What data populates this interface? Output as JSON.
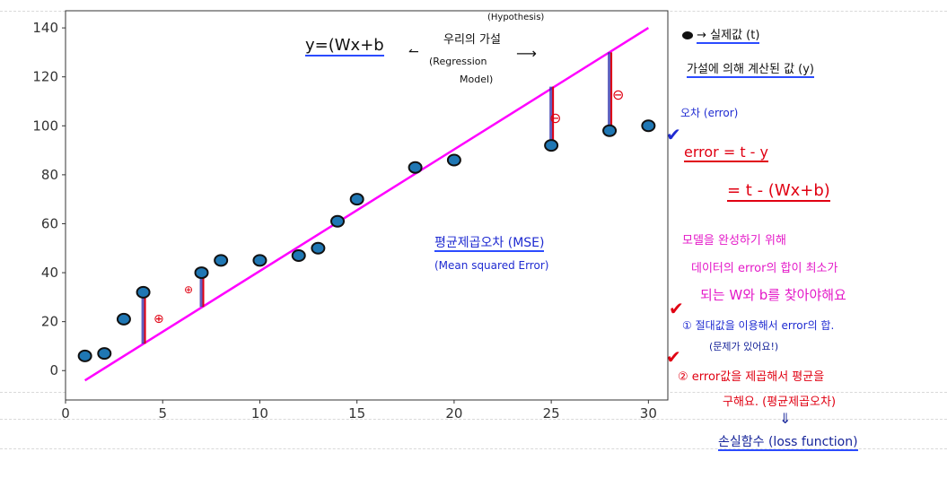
{
  "chart_data": {
    "type": "scatter",
    "title": "",
    "xlabel": "",
    "ylabel": "",
    "xlim": [
      0,
      31
    ],
    "ylim": [
      -12,
      147
    ],
    "xticks": [
      0,
      5,
      10,
      15,
      20,
      25,
      30
    ],
    "yticks": [
      0,
      20,
      40,
      60,
      80,
      100,
      120,
      140
    ],
    "points": {
      "x": [
        1,
        2,
        3,
        4,
        7,
        8,
        10,
        12,
        13,
        14,
        15,
        18,
        20,
        25,
        28,
        30
      ],
      "y": [
        6,
        7,
        21,
        32,
        40,
        45,
        45,
        47,
        50,
        61,
        70,
        83,
        86,
        92,
        98,
        100
      ]
    },
    "regression_line": {
      "x": [
        1,
        30
      ],
      "y": [
        -4,
        140
      ]
    },
    "error_segments": [
      {
        "x": 4,
        "y_from": 31,
        "y_to": 11
      },
      {
        "x": 7,
        "y_from": 40,
        "y_to": 26
      },
      {
        "x": 25,
        "y_from": 92,
        "y_to": 116
      },
      {
        "x": 28,
        "y_from": 98,
        "y_to": 130
      }
    ],
    "colors": {
      "points": "#1f77b4",
      "line": "#ff00ff",
      "errors": "#e00012"
    }
  },
  "notes": {
    "formula": "y=(Wx+b",
    "our_hypothesis": "우리의 가설",
    "hypothesis_en": "(Hypothesis)",
    "regression_model": "(Regression",
    "model_word": "Model)",
    "legend_real": "→ 실제값 (t)",
    "legend_pred": "가설에 의해 계산된 값 (y)",
    "error_label": "오차 (error)",
    "error_formula": "error = t - y",
    "error_formula2": "= t - (Wx+b)",
    "mse_ko": "평균제곱오차 (MSE)",
    "mse_en": "(Mean squared Error)",
    "goal_line1": "모델을 완성하기 위해",
    "goal_line2": "데이터의 error의 합이 최소가",
    "goal_line3": "되는 W와 b를 찾아야해요",
    "step1": "① 절대값을 이용해서 error의 합.",
    "step1_note": "(문제가 있어요!)",
    "step2": "② error값을 제곱해서 평균을",
    "step2b": "구해요. (평균제곱오차)",
    "loss": "손실함수 (loss function)",
    "plus_sign": "⊕",
    "minus_sign": "⊖",
    "checkmark": "✔"
  }
}
